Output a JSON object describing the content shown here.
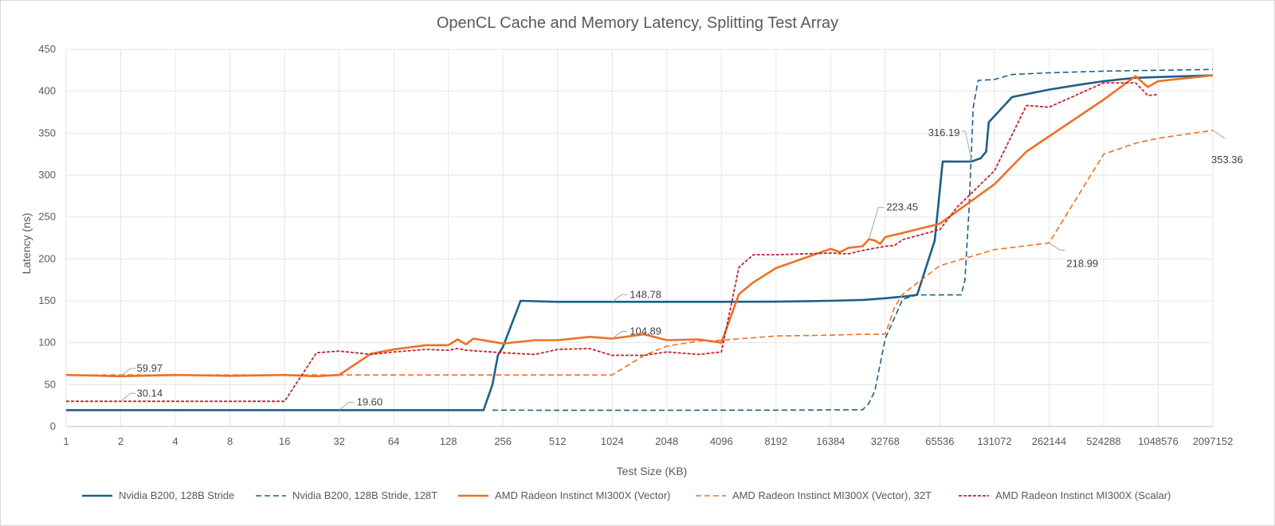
{
  "chart_data": {
    "type": "line",
    "title": "OpenCL Cache and Memory Latency, Splitting Test Array",
    "xlabel": "Test Size (KB)",
    "ylabel": "Latency (ns)",
    "x_scale": "log2",
    "x_ticks": [
      "1",
      "2",
      "4",
      "8",
      "16",
      "32",
      "64",
      "128",
      "256",
      "512",
      "1024",
      "2048",
      "4096",
      "8192",
      "16384",
      "32768",
      "65536",
      "131072",
      "262144",
      "524288",
      "1048576",
      "2097152"
    ],
    "y_ticks": [
      "0",
      "50",
      "100",
      "150",
      "200",
      "250",
      "300",
      "350",
      "400",
      "450"
    ],
    "ylim": [
      0,
      450
    ],
    "xlim": [
      1,
      2097152
    ],
    "grid": true,
    "legend_position": "bottom",
    "series": [
      {
        "name": "Nvidia B200, 128B Stride",
        "color": "#1f5f86",
        "dash": "solid",
        "points": [
          [
            1,
            19.6
          ],
          [
            2,
            19.6
          ],
          [
            8,
            19.6
          ],
          [
            32,
            19.6
          ],
          [
            128,
            19.6
          ],
          [
            200,
            19.6
          ],
          [
            212,
            35
          ],
          [
            224,
            50
          ],
          [
            240,
            85
          ],
          [
            256,
            95
          ],
          [
            320,
            150
          ],
          [
            512,
            148.78
          ],
          [
            1024,
            148.78
          ],
          [
            2048,
            148.78
          ],
          [
            4096,
            148.78
          ],
          [
            8192,
            149
          ],
          [
            16384,
            150
          ],
          [
            24576,
            151
          ],
          [
            32768,
            153
          ],
          [
            40960,
            155
          ],
          [
            49152,
            157
          ],
          [
            61440,
            222
          ],
          [
            68000,
            316.19
          ],
          [
            81920,
            316
          ],
          [
            98304,
            316.19
          ],
          [
            110000,
            320
          ],
          [
            118000,
            328
          ],
          [
            122000,
            363
          ],
          [
            163840,
            393
          ],
          [
            262144,
            402
          ],
          [
            393216,
            408
          ],
          [
            524288,
            412
          ],
          [
            786432,
            416
          ],
          [
            1048576,
            417
          ],
          [
            2097152,
            419
          ]
        ]
      },
      {
        "name": "Nvidia B200, 128B Stride, 128T",
        "color": "#1f5f86",
        "dash": "dashed",
        "points": [
          [
            224,
            19.6
          ],
          [
            512,
            19.4
          ],
          [
            1024,
            19.4
          ],
          [
            2048,
            19.4
          ],
          [
            4096,
            19.6
          ],
          [
            8192,
            19.6
          ],
          [
            16384,
            19.8
          ],
          [
            24576,
            20
          ],
          [
            26500,
            27
          ],
          [
            28672,
            42
          ],
          [
            32768,
            105
          ],
          [
            40960,
            152
          ],
          [
            49152,
            157
          ],
          [
            65536,
            157
          ],
          [
            86016,
            157
          ],
          [
            90112,
            175
          ],
          [
            95000,
            260
          ],
          [
            100000,
            380
          ],
          [
            106496,
            413
          ],
          [
            131072,
            414
          ],
          [
            163840,
            420
          ],
          [
            262144,
            422
          ],
          [
            524288,
            424
          ],
          [
            1048576,
            425
          ],
          [
            2097152,
            426
          ]
        ]
      },
      {
        "name": "AMD Radeon Instinct MI300X (Vector)",
        "color": "#ee7024",
        "dash": "solid",
        "points": [
          [
            1,
            61.5
          ],
          [
            2,
            59.97
          ],
          [
            4,
            61.5
          ],
          [
            8,
            60.5
          ],
          [
            12,
            61
          ],
          [
            16,
            61.5
          ],
          [
            24,
            60
          ],
          [
            32,
            61.5
          ],
          [
            48,
            87
          ],
          [
            64,
            92
          ],
          [
            96,
            97
          ],
          [
            128,
            97
          ],
          [
            144,
            104
          ],
          [
            160,
            98
          ],
          [
            176,
            104.89
          ],
          [
            256,
            99
          ],
          [
            384,
            103
          ],
          [
            512,
            103
          ],
          [
            768,
            107
          ],
          [
            1024,
            104.89
          ],
          [
            1536,
            110
          ],
          [
            2048,
            103
          ],
          [
            3072,
            104
          ],
          [
            4096,
            100
          ],
          [
            5120,
            158
          ],
          [
            6144,
            172
          ],
          [
            8192,
            189
          ],
          [
            16384,
            212
          ],
          [
            18432,
            208
          ],
          [
            20480,
            213
          ],
          [
            24576,
            215
          ],
          [
            26624,
            223.45
          ],
          [
            28672,
            222
          ],
          [
            30720,
            218
          ],
          [
            32768,
            226
          ],
          [
            40960,
            231
          ],
          [
            65536,
            242
          ],
          [
            131072,
            289
          ],
          [
            196608,
            328
          ],
          [
            524288,
            390
          ],
          [
            786432,
            418
          ],
          [
            917504,
            405
          ],
          [
            1048576,
            412
          ],
          [
            2097152,
            419
          ]
        ]
      },
      {
        "name": "AMD Radeon Instinct MI300X (Vector), 32T",
        "color": "#ee7024",
        "dash": "dashed",
        "points": [
          [
            1,
            61.5
          ],
          [
            4,
            61.5
          ],
          [
            16,
            61.5
          ],
          [
            32,
            61.5
          ],
          [
            64,
            61.5
          ],
          [
            128,
            61.5
          ],
          [
            512,
            61.5
          ],
          [
            1024,
            61.5
          ],
          [
            1536,
            85
          ],
          [
            2048,
            96
          ],
          [
            3072,
            102
          ],
          [
            4096,
            103
          ],
          [
            8192,
            108
          ],
          [
            16384,
            109
          ],
          [
            24576,
            110
          ],
          [
            32768,
            110
          ],
          [
            36864,
            142
          ],
          [
            40960,
            158
          ],
          [
            65536,
            192
          ],
          [
            131072,
            211
          ],
          [
            262144,
            218.99
          ],
          [
            524288,
            325
          ],
          [
            786432,
            338
          ],
          [
            1048576,
            344
          ],
          [
            2097152,
            353.36
          ]
        ]
      },
      {
        "name": "AMD Radeon Instinct MI300X (Scalar)",
        "color": "#c0262d",
        "dash": "dotted",
        "points": [
          [
            1,
            30.14
          ],
          [
            2,
            30.14
          ],
          [
            4,
            30.14
          ],
          [
            8,
            30.14
          ],
          [
            16,
            30.14
          ],
          [
            24,
            88
          ],
          [
            32,
            90
          ],
          [
            48,
            86
          ],
          [
            64,
            89
          ],
          [
            96,
            92
          ],
          [
            128,
            91
          ],
          [
            144,
            93
          ],
          [
            160,
            91
          ],
          [
            256,
            88
          ],
          [
            384,
            86
          ],
          [
            512,
            92
          ],
          [
            768,
            93
          ],
          [
            1024,
            85
          ],
          [
            1536,
            85
          ],
          [
            2048,
            89
          ],
          [
            3072,
            86
          ],
          [
            4096,
            89
          ],
          [
            5120,
            190
          ],
          [
            6144,
            205
          ],
          [
            8192,
            205
          ],
          [
            16384,
            207
          ],
          [
            20480,
            206
          ],
          [
            24576,
            210
          ],
          [
            32768,
            215
          ],
          [
            36864,
            216
          ],
          [
            40960,
            223
          ],
          [
            65536,
            235
          ],
          [
            81920,
            262
          ],
          [
            131072,
            305
          ],
          [
            196608,
            383
          ],
          [
            262144,
            381
          ],
          [
            524288,
            410
          ],
          [
            786432,
            410
          ],
          [
            917504,
            395
          ],
          [
            1048576,
            396
          ]
        ]
      }
    ],
    "data_labels": [
      {
        "text": "59.97",
        "x": 2,
        "y": 59.97
      },
      {
        "text": "30.14",
        "x": 2,
        "y": 30.14
      },
      {
        "text": "19.60",
        "x": 32,
        "y": 19.6
      },
      {
        "text": "148.78",
        "x": 1024,
        "y": 148.78
      },
      {
        "text": "104.89",
        "x": 1024,
        "y": 104.89
      },
      {
        "text": "223.45",
        "x": 26624,
        "y": 223.45
      },
      {
        "text": "316.19",
        "x": 98304,
        "y": 316.19
      },
      {
        "text": "218.99",
        "x": 262144,
        "y": 218.99
      },
      {
        "text": "353.36",
        "x": 2097152,
        "y": 353.36
      }
    ]
  }
}
